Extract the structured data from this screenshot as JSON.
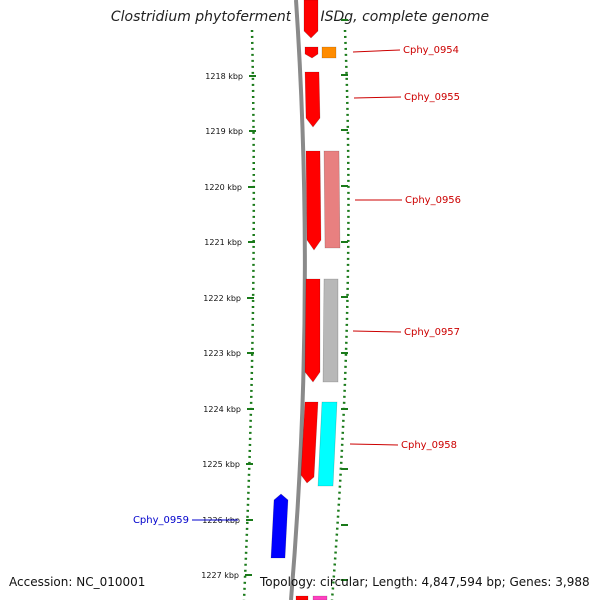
{
  "title": "Clostridium phytofermentans ISDg, complete genome",
  "accession": "Accession: NC_010001",
  "summary": "Topology: circular; Length: 4,847,594 bp; Genes: 3,988",
  "scale": {
    "unit": "kbp",
    "ticks": [
      "1218 kbp",
      "1219 kbp",
      "1220 kbp",
      "1221 kbp",
      "1222 kbp",
      "1223 kbp",
      "1224 kbp",
      "1225 kbp",
      "1226 kbp",
      "1227 kbp"
    ]
  },
  "colors": {
    "backbone": "#8a8a8a",
    "ring_tick": "#1a7a1a",
    "label_red": "#cc0000",
    "label_blue": "#0000cc",
    "cds_red": "#ff0000",
    "orange": "#ff8c00",
    "pink": "#e88080",
    "gray": "#b8b8b8",
    "cyan": "#00ffff",
    "blue": "#0000ff",
    "magenta": "#ff40c0"
  },
  "genes": [
    {
      "name": "Cphy_0954",
      "color": "#cc0000"
    },
    {
      "name": "Cphy_0955",
      "color": "#cc0000"
    },
    {
      "name": "Cphy_0956",
      "color": "#cc0000"
    },
    {
      "name": "Cphy_0957",
      "color": "#cc0000"
    },
    {
      "name": "Cphy_0958",
      "color": "#cc0000"
    },
    {
      "name": "Cphy_0959",
      "color": "#0000cc"
    }
  ]
}
